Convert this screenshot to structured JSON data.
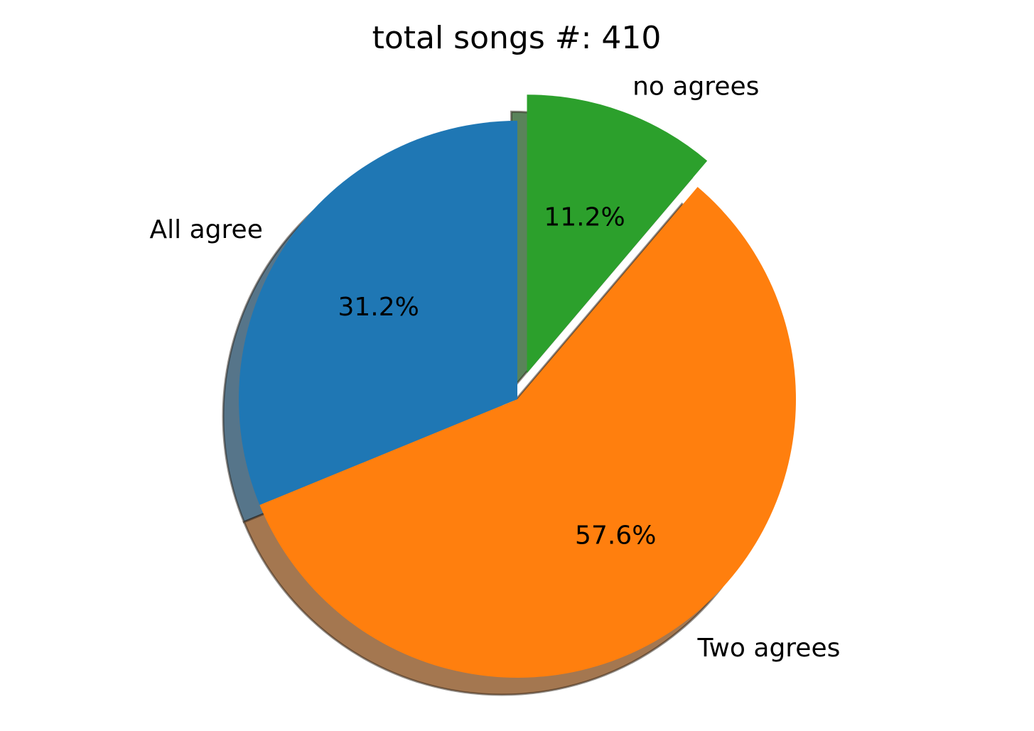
{
  "chart_data": {
    "type": "pie",
    "title": "total songs #: 410",
    "slices": [
      {
        "label": "no agrees",
        "value": 11.2,
        "pct_label": "11.2%",
        "color": "#2ca02c",
        "exploded": true
      },
      {
        "label": "All agree",
        "value": 31.2,
        "pct_label": "31.2%",
        "color": "#1f77b4",
        "exploded": false
      },
      {
        "label": "Two agrees",
        "value": 57.6,
        "pct_label": "57.6%",
        "color": "#ff7f0e",
        "exploded": false
      }
    ],
    "start_angle_deg": 90,
    "direction": "counterclockwise-from-top (matplotlib startangle=90 ordering shown)",
    "shadow": true
  }
}
